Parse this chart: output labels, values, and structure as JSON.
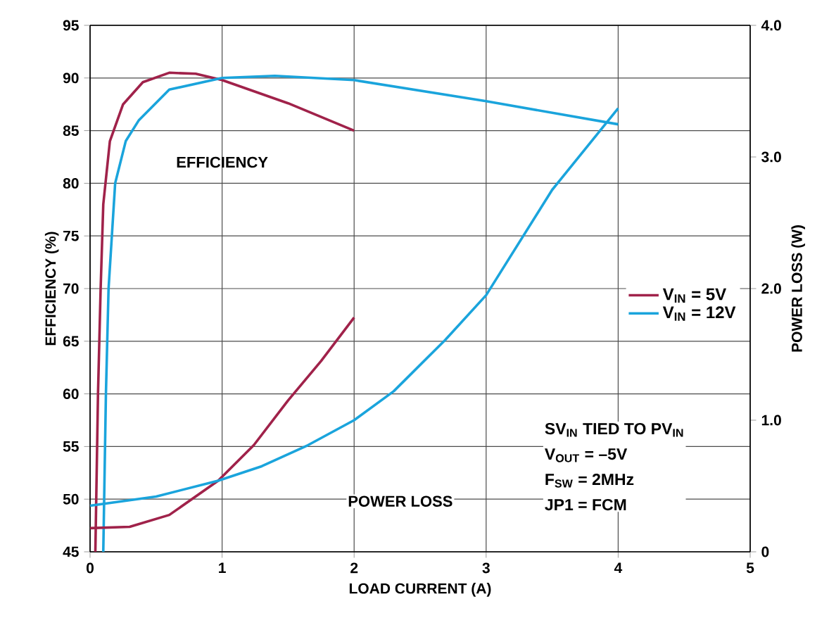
{
  "chart_data": {
    "type": "line",
    "xlabel": "LOAD CURRENT (A)",
    "ylabel": "EFFICIENCY (%)",
    "y2label": "POWER LOSS (W)",
    "xlim": [
      0,
      5
    ],
    "xticks": [
      0,
      1,
      2,
      3,
      4,
      5
    ],
    "ylim": [
      45,
      95
    ],
    "yticks": [
      45,
      50,
      55,
      60,
      65,
      70,
      75,
      80,
      85,
      90,
      95
    ],
    "y2lim": [
      0,
      4
    ],
    "y2ticks": [
      0,
      {
        "value": 1,
        "label": "1.0"
      },
      {
        "value": 2,
        "label": "2.0"
      },
      {
        "value": 3,
        "label": "3.0"
      },
      {
        "value": 4,
        "label": "4.0"
      }
    ],
    "grid": true,
    "legend": "right",
    "series": [
      {
        "name": "V$_{IN}$ = 5V",
        "color": "#a0224a",
        "x": [
          0.04,
          0.06,
          0.08,
          0.1,
          0.15,
          0.25,
          0.4,
          0.6,
          0.8,
          1,
          1.5,
          2
        ],
        "values": [
          45,
          60,
          70,
          78,
          84,
          87.5,
          89.6,
          90.5,
          90.4,
          89.8,
          87.6,
          85
        ]
      },
      {
        "name": "V$_{IN}$ = 12V",
        "color": "#1aa4dc",
        "x": [
          0.1,
          0.12,
          0.14,
          0.19,
          0.27,
          0.37,
          0.6,
          1,
          1.4,
          2,
          3,
          4
        ],
        "values": [
          45,
          60,
          70,
          80,
          84,
          86,
          88.9,
          90,
          90.2,
          89.8,
          87.8,
          85.6
        ]
      },
      {
        "color": "#a0224a",
        "axis": "y2",
        "x": [
          0,
          0.3,
          0.6,
          0.97,
          1.24,
          1.5,
          1.75,
          2
        ],
        "values": [
          0.18,
          0.19,
          0.28,
          0.54,
          0.81,
          1.15,
          1.45,
          1.78
        ]
      },
      {
        "color": "#1aa4dc",
        "axis": "y2",
        "x": [
          0,
          0.5,
          0.97,
          1.3,
          1.65,
          2,
          2.3,
          2.69,
          3,
          3.5,
          4
        ],
        "values": [
          0.35,
          0.42,
          0.54,
          0.65,
          0.81,
          1.0,
          1.22,
          1.61,
          1.95,
          2.75,
          3.37
        ]
      }
    ],
    "annotations": [
      "EFFICIENCY",
      "POWER LOSS",
      "SV$_{IN}$ TIED TO PV$_{IN}$",
      "V$_{OUT}$ = –5V",
      "F$_{SW}$ = 2MHz",
      "JP1 = FCM"
    ]
  }
}
